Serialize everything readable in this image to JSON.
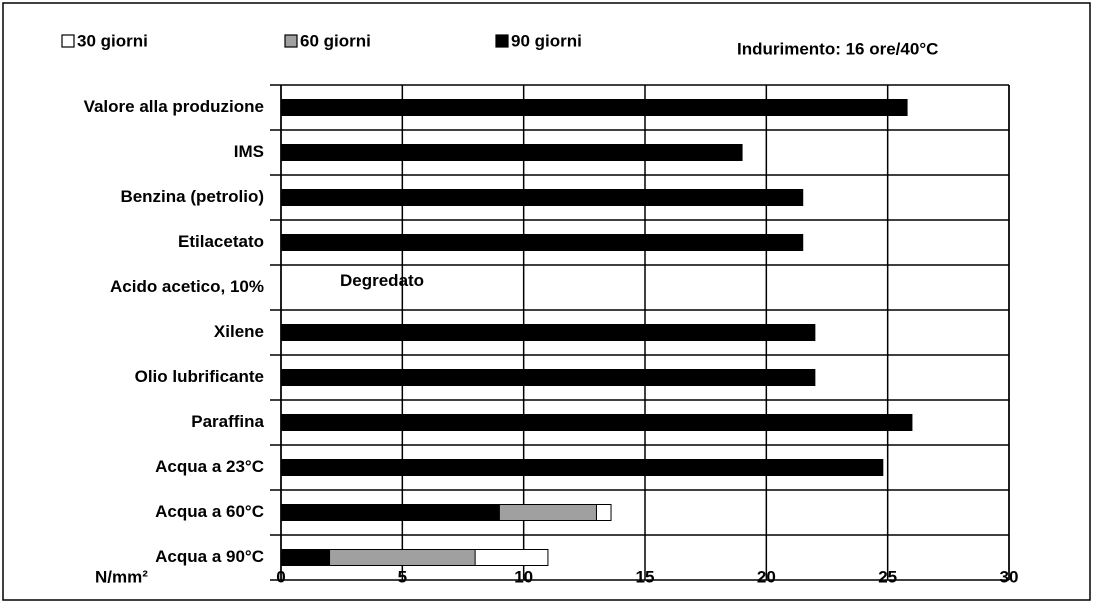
{
  "chart_data": {
    "type": "bar",
    "orientation": "horizontal",
    "annotations": [
      "Indurimento: 16 ore/40°C",
      "Degredato"
    ],
    "x_label": "N/mm²",
    "categories": [
      "Valore alla produzione",
      "IMS",
      "Benzina (petrolio)",
      "Etilacetato",
      "Acido acetico, 10%",
      "Xilene",
      "Olio lubrificante",
      "Paraffina",
      "Acqua a 23°C",
      "Acqua a 60°C",
      "Acqua a 90°C"
    ],
    "series": [
      {
        "name": "30 giorni",
        "color": "#ffffff",
        "values": [
          null,
          null,
          null,
          null,
          null,
          null,
          null,
          null,
          null,
          13.6,
          11
        ]
      },
      {
        "name": "60 giorni",
        "color": "#a0a0a0",
        "values": [
          null,
          null,
          null,
          null,
          null,
          null,
          null,
          null,
          null,
          13,
          8
        ]
      },
      {
        "name": "90 giorni",
        "color": "#000000",
        "values": [
          25.8,
          19,
          21.5,
          21.5,
          null,
          22,
          22,
          26,
          24.8,
          9,
          2
        ]
      }
    ],
    "xlim": [
      0,
      30
    ],
    "xticks": [
      0,
      5,
      10,
      15,
      20,
      25,
      30
    ],
    "grid": true
  }
}
